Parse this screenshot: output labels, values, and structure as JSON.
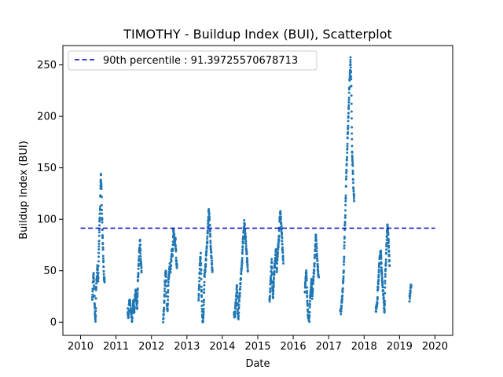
{
  "chart_data": {
    "type": "scatter",
    "title": "TIMOTHY - Buildup Index (BUI), Scatterplot",
    "xlabel": "Date",
    "ylabel": "Buildup Index (BUI)",
    "xlim": [
      2009.5,
      2020.5
    ],
    "ylim": [
      -12.8,
      268.8
    ],
    "x_ticks": [
      2010,
      2011,
      2012,
      2013,
      2014,
      2015,
      2016,
      2017,
      2018,
      2019,
      2020
    ],
    "x_tick_labels": [
      "2010",
      "2011",
      "2012",
      "2013",
      "2014",
      "2015",
      "2016",
      "2017",
      "2018",
      "2019",
      "2020"
    ],
    "y_ticks": [
      0,
      50,
      100,
      150,
      200,
      250
    ],
    "y_tick_labels": [
      "0",
      "50",
      "100",
      "150",
      "200",
      "250"
    ],
    "threshold": {
      "label": "90th percentile : 91.39725570678713",
      "value": 91.39725570678713,
      "x_range": [
        2010,
        2020
      ],
      "color": "#0000cc",
      "style": "dashed"
    },
    "legend_position": "upper-left",
    "point_color": "#1f77b4",
    "seasons": [
      {
        "start": 2010.33,
        "end": 2010.68,
        "values": [
          22,
          38,
          48,
          30,
          10,
          2,
          35,
          45,
          55,
          40,
          70,
          95,
          110,
          143,
          130,
          100,
          80,
          60,
          42,
          40
        ]
      },
      {
        "start": 2011.33,
        "end": 2011.72,
        "values": [
          12,
          5,
          18,
          20,
          10,
          8,
          2,
          15,
          20,
          10,
          25,
          30,
          20,
          15,
          40,
          55,
          70,
          78,
          60,
          50
        ]
      },
      {
        "start": 2012.33,
        "end": 2012.72,
        "values": [
          2,
          12,
          30,
          45,
          50,
          20,
          10,
          38,
          45,
          55,
          50,
          60,
          70,
          65,
          90,
          85,
          75,
          80,
          60,
          55
        ]
      },
      {
        "start": 2013.33,
        "end": 2013.72,
        "values": [
          20,
          40,
          60,
          65,
          30,
          5,
          1,
          15,
          45,
          50,
          60,
          70,
          80,
          95,
          108,
          100,
          85,
          70,
          60,
          50
        ]
      },
      {
        "start": 2014.33,
        "end": 2014.72,
        "values": [
          8,
          5,
          15,
          25,
          35,
          10,
          3,
          20,
          30,
          40,
          50,
          60,
          75,
          85,
          98,
          90,
          80,
          70,
          60,
          50
        ]
      },
      {
        "start": 2015.33,
        "end": 2015.72,
        "values": [
          20,
          30,
          45,
          60,
          35,
          25,
          40,
          55,
          60,
          70,
          50,
          65,
          75,
          80,
          100,
          107,
          95,
          85,
          70,
          60
        ]
      },
      {
        "start": 2016.33,
        "end": 2016.72,
        "values": [
          30,
          45,
          48,
          25,
          10,
          5,
          3,
          20,
          30,
          40,
          25,
          35,
          45,
          55,
          70,
          85,
          75,
          60,
          50,
          45
        ]
      },
      {
        "start": 2017.33,
        "end": 2017.72,
        "values": [
          8,
          12,
          20,
          30,
          40,
          60,
          90,
          110,
          140,
          160,
          180,
          200,
          220,
          240,
          256,
          230,
          170,
          150,
          130,
          120
        ]
      },
      {
        "start": 2018.33,
        "end": 2018.72,
        "values": [
          10,
          15,
          20,
          35,
          45,
          60,
          65,
          70,
          50,
          40,
          30,
          20,
          8,
          45,
          60,
          80,
          95,
          85,
          70,
          55
        ]
      },
      {
        "start": 2019.28,
        "end": 2019.33,
        "values": [
          22,
          26,
          30,
          34,
          38
        ]
      }
    ]
  }
}
